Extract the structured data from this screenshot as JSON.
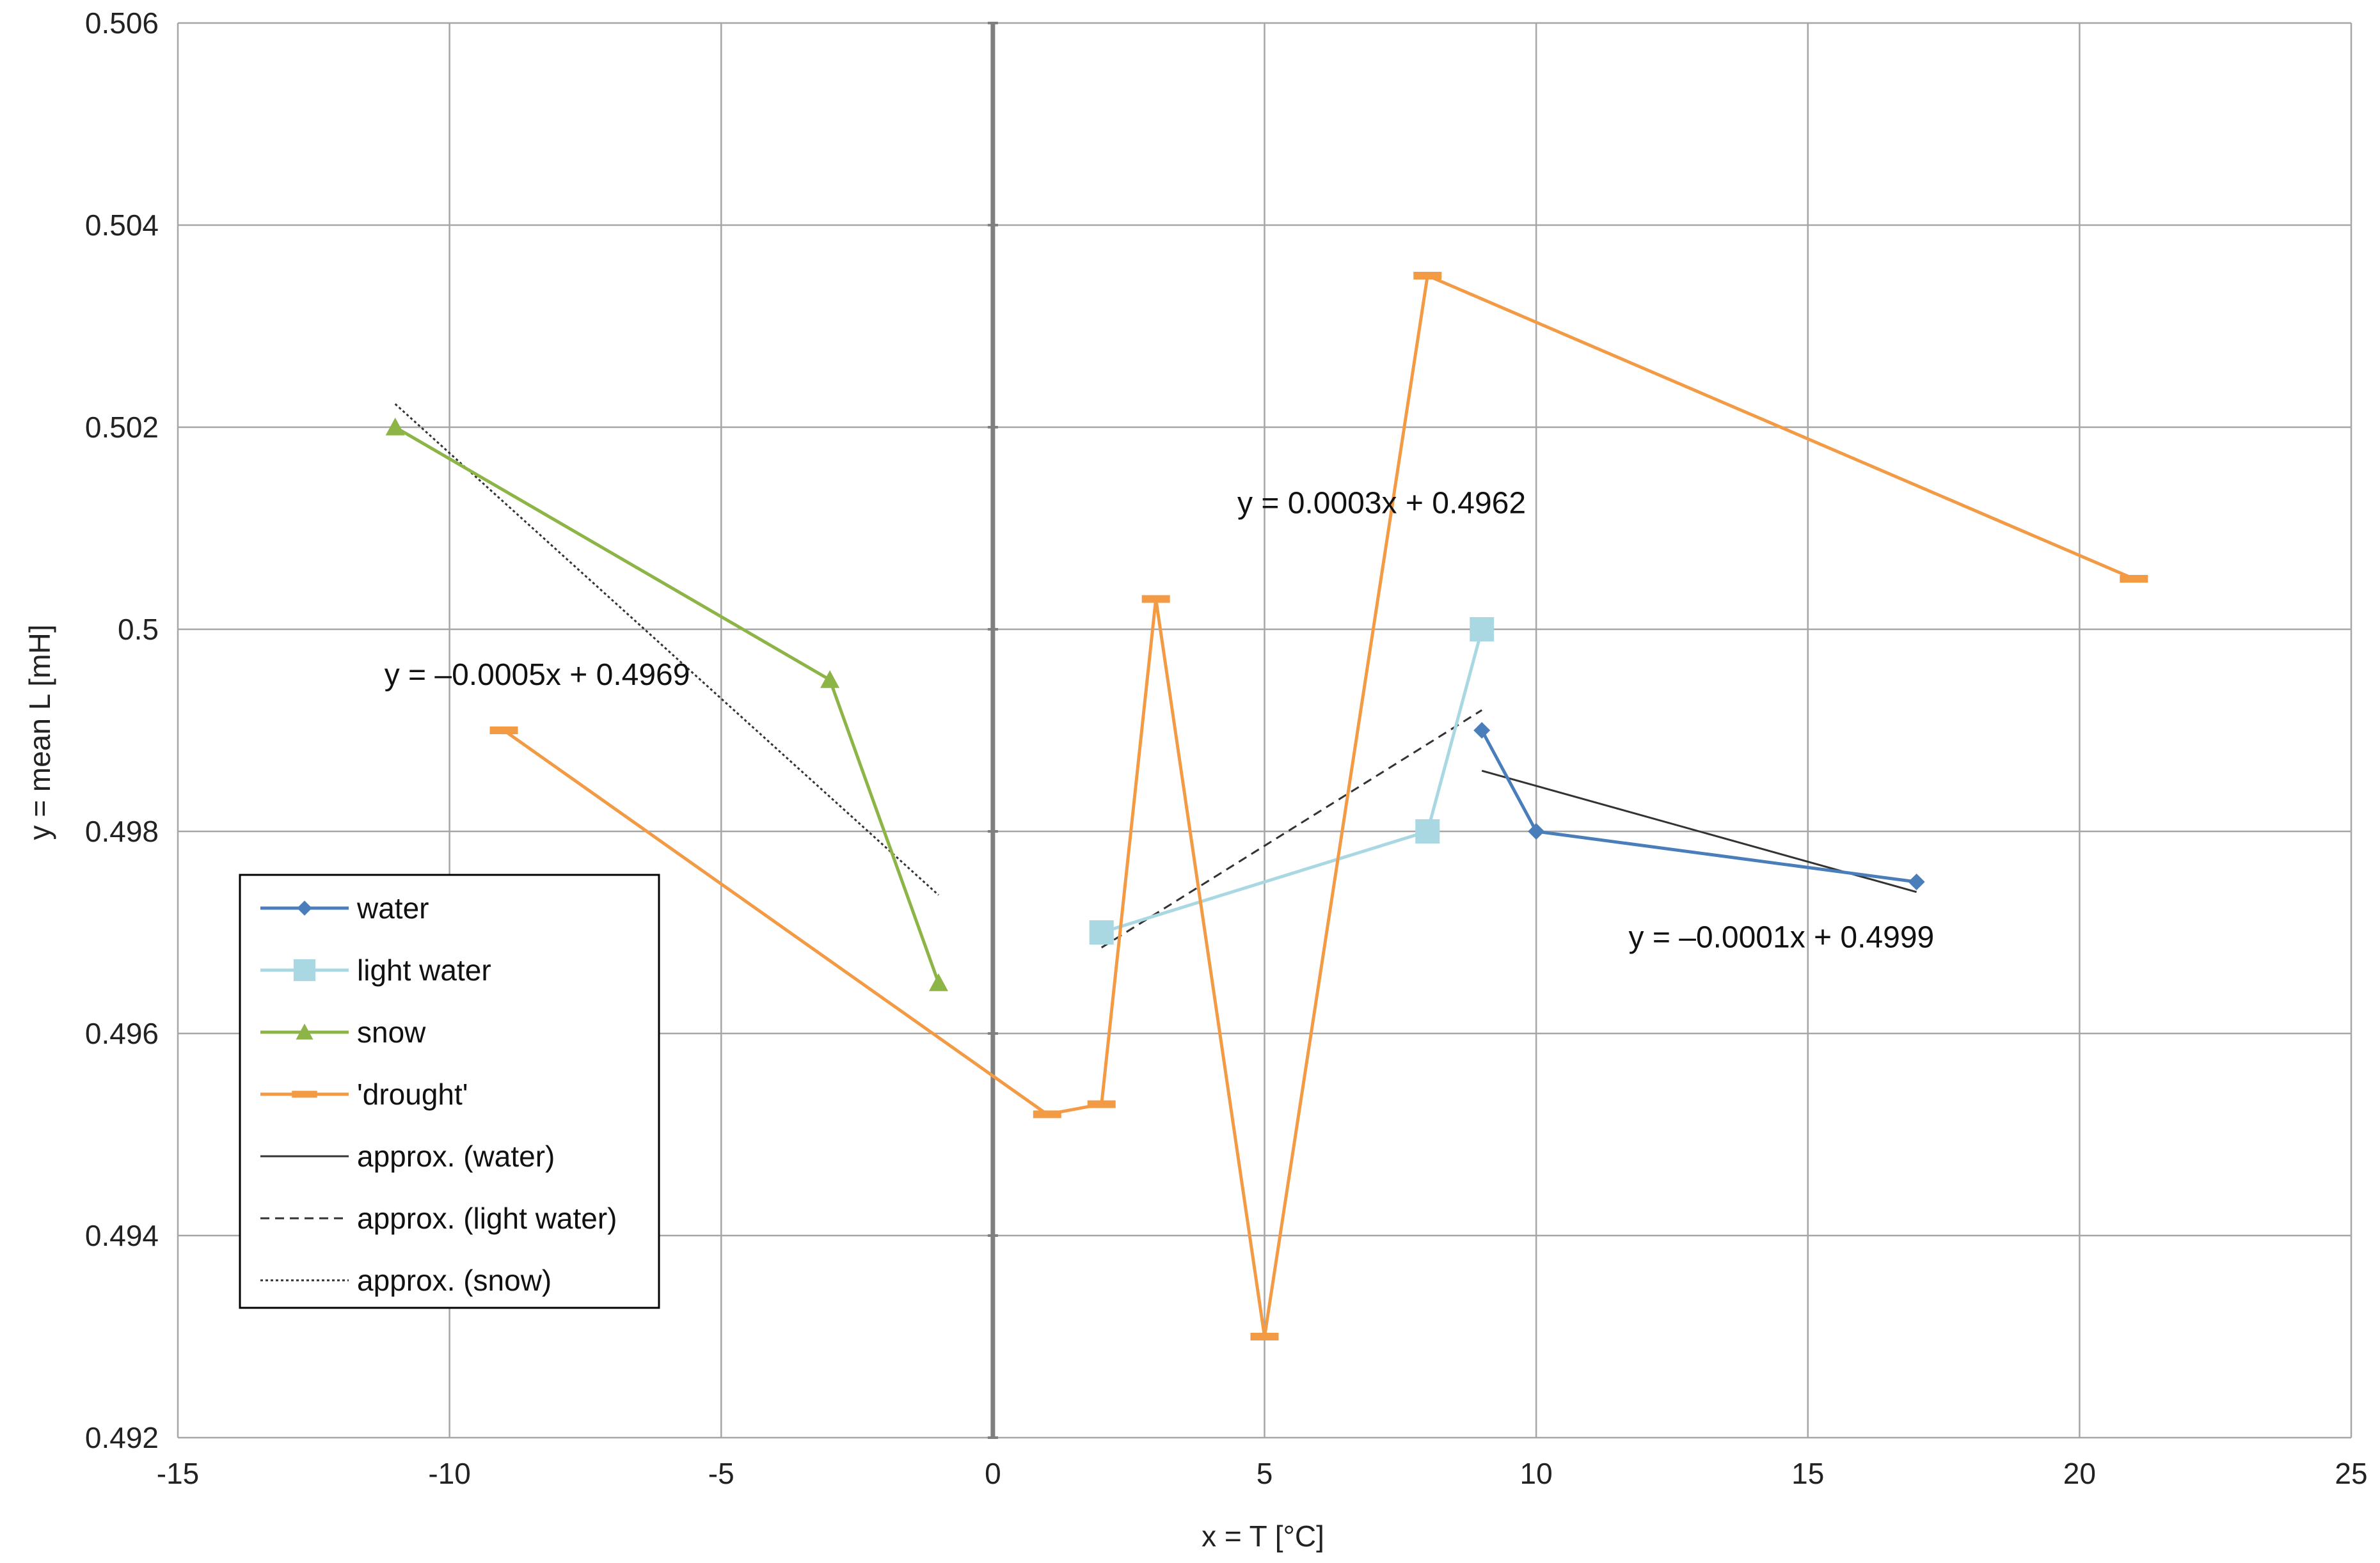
{
  "chart_data": {
    "type": "scatter",
    "title": "",
    "xlabel": "x = T [°C]",
    "ylabel": "y = mean L [mH]",
    "xlim": [
      -15,
      25
    ],
    "ylim": [
      0.492,
      0.506
    ],
    "x_ticks": [
      -15,
      -10,
      -5,
      0,
      5,
      10,
      15,
      20,
      25
    ],
    "x_tick_labels": [
      "-15",
      "-10",
      "-5",
      "0",
      "5",
      "10",
      "15",
      "20",
      "25"
    ],
    "y_ticks": [
      0.492,
      0.494,
      0.496,
      0.498,
      0.5,
      0.502,
      0.504,
      0.506
    ],
    "y_tick_labels": [
      "0.492",
      "0.494",
      "0.496",
      "0.498",
      "0.5",
      "0.502",
      "0.504",
      "0.506"
    ],
    "grid": true,
    "legend_position": "lower-left",
    "series": [
      {
        "name": "water",
        "marker": "diamond",
        "color": "#4a7ebb",
        "line": "solid",
        "points": [
          [
            9,
            0.499
          ],
          [
            10,
            0.498
          ],
          [
            17,
            0.4975
          ]
        ]
      },
      {
        "name": "light water",
        "marker": "square",
        "color": "#a9d8e3",
        "line": "solid",
        "points": [
          [
            2,
            0.497
          ],
          [
            8,
            0.498
          ],
          [
            9,
            0.5
          ]
        ]
      },
      {
        "name": "snow",
        "marker": "triangle",
        "color": "#8db446",
        "line": "solid",
        "points": [
          [
            -11,
            0.502
          ],
          [
            -3,
            0.4995
          ],
          [
            -1,
            0.4965
          ]
        ]
      },
      {
        "name": "'drought'",
        "marker": "dash",
        "color": "#f39a45",
        "line": "solid",
        "points": [
          [
            -9,
            0.499
          ],
          [
            1,
            0.4952
          ],
          [
            2,
            0.4953
          ],
          [
            3,
            0.5003
          ],
          [
            5,
            0.493
          ],
          [
            8,
            0.5035
          ],
          [
            21,
            0.5005
          ]
        ]
      }
    ],
    "trendlines": [
      {
        "name": "approx. (water)",
        "style": "solid",
        "color": "#333333",
        "points": [
          [
            9,
            0.4986
          ],
          [
            17,
            0.4974
          ]
        ]
      },
      {
        "name": "approx. (light water)",
        "style": "dashed",
        "color": "#333333",
        "points": [
          [
            2,
            0.49685
          ],
          [
            9,
            0.4992
          ]
        ]
      },
      {
        "name": "approx. (snow)",
        "style": "dotted",
        "color": "#333333",
        "points": [
          [
            -11,
            0.50223
          ],
          [
            -1,
            0.49737
          ]
        ]
      }
    ],
    "annotations": [
      {
        "text": "y = 0.0003x + 0.4962",
        "x": 4.5,
        "y": 0.50115
      },
      {
        "text": "y = –0.0005x + 0.4969",
        "x": -11.2,
        "y": 0.49945
      },
      {
        "text": "y = –0.0001x + 0.4999",
        "x": 11.7,
        "y": 0.49685
      }
    ],
    "legend_entries": [
      {
        "label": "water",
        "type": "series",
        "ref": 0
      },
      {
        "label": "light water",
        "type": "series",
        "ref": 1
      },
      {
        "label": "snow",
        "type": "series",
        "ref": 2
      },
      {
        "label": "'drought'",
        "type": "series",
        "ref": 3
      },
      {
        "label": "approx. (water)",
        "type": "trend",
        "ref": 0
      },
      {
        "label": "approx. (light water)",
        "type": "trend",
        "ref": 1
      },
      {
        "label": "approx. (snow)",
        "type": "trend",
        "ref": 2
      }
    ]
  }
}
